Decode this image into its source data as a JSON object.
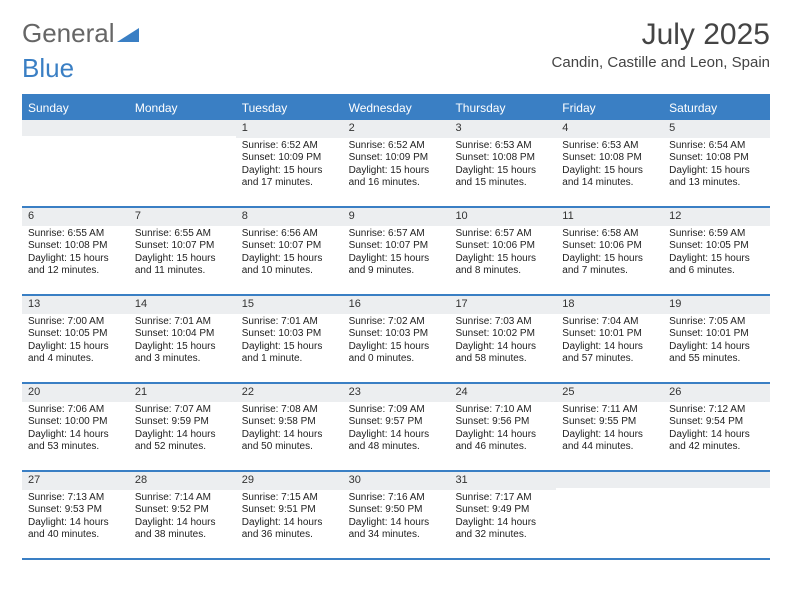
{
  "logo": {
    "text1": "General",
    "text2": "Blue",
    "accent": "#3a7fc4"
  },
  "title": "July 2025",
  "location": "Candin, Castille and Leon, Spain",
  "day_names": [
    "Sunday",
    "Monday",
    "Tuesday",
    "Wednesday",
    "Thursday",
    "Friday",
    "Saturday"
  ],
  "colors": {
    "header_bg": "#3a7fc4",
    "daynum_bg": "#eceef0",
    "border": "#3a7fc4",
    "text": "#222222"
  },
  "weeks": [
    [
      {
        "num": "",
        "sunrise": "",
        "sunset": "",
        "daylight1": "",
        "daylight2": ""
      },
      {
        "num": "",
        "sunrise": "",
        "sunset": "",
        "daylight1": "",
        "daylight2": ""
      },
      {
        "num": "1",
        "sunrise": "Sunrise: 6:52 AM",
        "sunset": "Sunset: 10:09 PM",
        "daylight1": "Daylight: 15 hours",
        "daylight2": "and 17 minutes."
      },
      {
        "num": "2",
        "sunrise": "Sunrise: 6:52 AM",
        "sunset": "Sunset: 10:09 PM",
        "daylight1": "Daylight: 15 hours",
        "daylight2": "and 16 minutes."
      },
      {
        "num": "3",
        "sunrise": "Sunrise: 6:53 AM",
        "sunset": "Sunset: 10:08 PM",
        "daylight1": "Daylight: 15 hours",
        "daylight2": "and 15 minutes."
      },
      {
        "num": "4",
        "sunrise": "Sunrise: 6:53 AM",
        "sunset": "Sunset: 10:08 PM",
        "daylight1": "Daylight: 15 hours",
        "daylight2": "and 14 minutes."
      },
      {
        "num": "5",
        "sunrise": "Sunrise: 6:54 AM",
        "sunset": "Sunset: 10:08 PM",
        "daylight1": "Daylight: 15 hours",
        "daylight2": "and 13 minutes."
      }
    ],
    [
      {
        "num": "6",
        "sunrise": "Sunrise: 6:55 AM",
        "sunset": "Sunset: 10:08 PM",
        "daylight1": "Daylight: 15 hours",
        "daylight2": "and 12 minutes."
      },
      {
        "num": "7",
        "sunrise": "Sunrise: 6:55 AM",
        "sunset": "Sunset: 10:07 PM",
        "daylight1": "Daylight: 15 hours",
        "daylight2": "and 11 minutes."
      },
      {
        "num": "8",
        "sunrise": "Sunrise: 6:56 AM",
        "sunset": "Sunset: 10:07 PM",
        "daylight1": "Daylight: 15 hours",
        "daylight2": "and 10 minutes."
      },
      {
        "num": "9",
        "sunrise": "Sunrise: 6:57 AM",
        "sunset": "Sunset: 10:07 PM",
        "daylight1": "Daylight: 15 hours",
        "daylight2": "and 9 minutes."
      },
      {
        "num": "10",
        "sunrise": "Sunrise: 6:57 AM",
        "sunset": "Sunset: 10:06 PM",
        "daylight1": "Daylight: 15 hours",
        "daylight2": "and 8 minutes."
      },
      {
        "num": "11",
        "sunrise": "Sunrise: 6:58 AM",
        "sunset": "Sunset: 10:06 PM",
        "daylight1": "Daylight: 15 hours",
        "daylight2": "and 7 minutes."
      },
      {
        "num": "12",
        "sunrise": "Sunrise: 6:59 AM",
        "sunset": "Sunset: 10:05 PM",
        "daylight1": "Daylight: 15 hours",
        "daylight2": "and 6 minutes."
      }
    ],
    [
      {
        "num": "13",
        "sunrise": "Sunrise: 7:00 AM",
        "sunset": "Sunset: 10:05 PM",
        "daylight1": "Daylight: 15 hours",
        "daylight2": "and 4 minutes."
      },
      {
        "num": "14",
        "sunrise": "Sunrise: 7:01 AM",
        "sunset": "Sunset: 10:04 PM",
        "daylight1": "Daylight: 15 hours",
        "daylight2": "and 3 minutes."
      },
      {
        "num": "15",
        "sunrise": "Sunrise: 7:01 AM",
        "sunset": "Sunset: 10:03 PM",
        "daylight1": "Daylight: 15 hours",
        "daylight2": "and 1 minute."
      },
      {
        "num": "16",
        "sunrise": "Sunrise: 7:02 AM",
        "sunset": "Sunset: 10:03 PM",
        "daylight1": "Daylight: 15 hours",
        "daylight2": "and 0 minutes."
      },
      {
        "num": "17",
        "sunrise": "Sunrise: 7:03 AM",
        "sunset": "Sunset: 10:02 PM",
        "daylight1": "Daylight: 14 hours",
        "daylight2": "and 58 minutes."
      },
      {
        "num": "18",
        "sunrise": "Sunrise: 7:04 AM",
        "sunset": "Sunset: 10:01 PM",
        "daylight1": "Daylight: 14 hours",
        "daylight2": "and 57 minutes."
      },
      {
        "num": "19",
        "sunrise": "Sunrise: 7:05 AM",
        "sunset": "Sunset: 10:01 PM",
        "daylight1": "Daylight: 14 hours",
        "daylight2": "and 55 minutes."
      }
    ],
    [
      {
        "num": "20",
        "sunrise": "Sunrise: 7:06 AM",
        "sunset": "Sunset: 10:00 PM",
        "daylight1": "Daylight: 14 hours",
        "daylight2": "and 53 minutes."
      },
      {
        "num": "21",
        "sunrise": "Sunrise: 7:07 AM",
        "sunset": "Sunset: 9:59 PM",
        "daylight1": "Daylight: 14 hours",
        "daylight2": "and 52 minutes."
      },
      {
        "num": "22",
        "sunrise": "Sunrise: 7:08 AM",
        "sunset": "Sunset: 9:58 PM",
        "daylight1": "Daylight: 14 hours",
        "daylight2": "and 50 minutes."
      },
      {
        "num": "23",
        "sunrise": "Sunrise: 7:09 AM",
        "sunset": "Sunset: 9:57 PM",
        "daylight1": "Daylight: 14 hours",
        "daylight2": "and 48 minutes."
      },
      {
        "num": "24",
        "sunrise": "Sunrise: 7:10 AM",
        "sunset": "Sunset: 9:56 PM",
        "daylight1": "Daylight: 14 hours",
        "daylight2": "and 46 minutes."
      },
      {
        "num": "25",
        "sunrise": "Sunrise: 7:11 AM",
        "sunset": "Sunset: 9:55 PM",
        "daylight1": "Daylight: 14 hours",
        "daylight2": "and 44 minutes."
      },
      {
        "num": "26",
        "sunrise": "Sunrise: 7:12 AM",
        "sunset": "Sunset: 9:54 PM",
        "daylight1": "Daylight: 14 hours",
        "daylight2": "and 42 minutes."
      }
    ],
    [
      {
        "num": "27",
        "sunrise": "Sunrise: 7:13 AM",
        "sunset": "Sunset: 9:53 PM",
        "daylight1": "Daylight: 14 hours",
        "daylight2": "and 40 minutes."
      },
      {
        "num": "28",
        "sunrise": "Sunrise: 7:14 AM",
        "sunset": "Sunset: 9:52 PM",
        "daylight1": "Daylight: 14 hours",
        "daylight2": "and 38 minutes."
      },
      {
        "num": "29",
        "sunrise": "Sunrise: 7:15 AM",
        "sunset": "Sunset: 9:51 PM",
        "daylight1": "Daylight: 14 hours",
        "daylight2": "and 36 minutes."
      },
      {
        "num": "30",
        "sunrise": "Sunrise: 7:16 AM",
        "sunset": "Sunset: 9:50 PM",
        "daylight1": "Daylight: 14 hours",
        "daylight2": "and 34 minutes."
      },
      {
        "num": "31",
        "sunrise": "Sunrise: 7:17 AM",
        "sunset": "Sunset: 9:49 PM",
        "daylight1": "Daylight: 14 hours",
        "daylight2": "and 32 minutes."
      },
      {
        "num": "",
        "sunrise": "",
        "sunset": "",
        "daylight1": "",
        "daylight2": ""
      },
      {
        "num": "",
        "sunrise": "",
        "sunset": "",
        "daylight1": "",
        "daylight2": ""
      }
    ]
  ]
}
